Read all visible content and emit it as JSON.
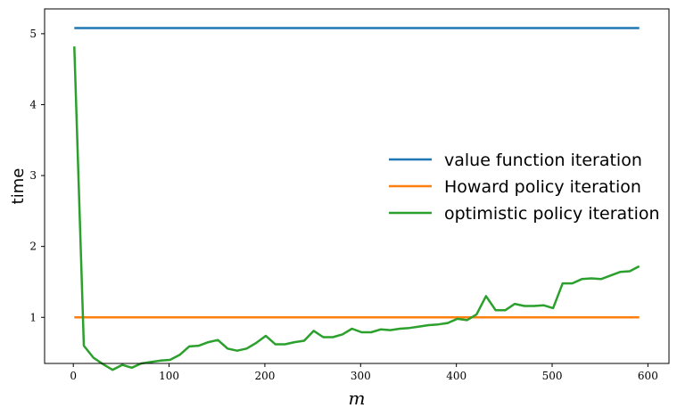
{
  "chart_data": {
    "type": "line",
    "xlabel": "m",
    "ylabel": "time",
    "xlim": [
      -30,
      622
    ],
    "ylim": [
      0.35,
      5.35
    ],
    "xticks": [
      0,
      100,
      200,
      300,
      400,
      500,
      600
    ],
    "yticks": [
      1,
      2,
      3,
      4,
      5
    ],
    "legend_position": "center-right",
    "grid": false,
    "series": [
      {
        "name": "value function iteration",
        "color": "#1f77b4",
        "x": [
          1,
          591
        ],
        "y": [
          5.08,
          5.08
        ]
      },
      {
        "name": "Howard policy iteration",
        "color": "#ff7f0e",
        "x": [
          1,
          591
        ],
        "y": [
          1.0,
          1.0
        ]
      },
      {
        "name": "optimistic policy iteration",
        "color": "#2ca02c",
        "x": [
          1,
          11,
          21,
          31,
          41,
          51,
          61,
          71,
          81,
          91,
          101,
          111,
          121,
          131,
          141,
          151,
          161,
          171,
          181,
          191,
          201,
          211,
          221,
          231,
          241,
          251,
          261,
          271,
          281,
          291,
          301,
          311,
          321,
          331,
          341,
          351,
          361,
          371,
          381,
          391,
          401,
          411,
          421,
          431,
          441,
          451,
          461,
          471,
          481,
          491,
          501,
          511,
          521,
          531,
          541,
          551,
          561,
          571,
          581,
          591
        ],
        "y": [
          4.82,
          0.6,
          0.43,
          0.34,
          0.26,
          0.33,
          0.29,
          0.35,
          0.37,
          0.39,
          0.4,
          0.47,
          0.59,
          0.6,
          0.65,
          0.68,
          0.56,
          0.53,
          0.56,
          0.64,
          0.74,
          0.62,
          0.62,
          0.65,
          0.67,
          0.81,
          0.72,
          0.72,
          0.76,
          0.84,
          0.79,
          0.79,
          0.83,
          0.82,
          0.84,
          0.85,
          0.87,
          0.89,
          0.9,
          0.92,
          0.98,
          0.96,
          1.04,
          1.3,
          1.1,
          1.1,
          1.19,
          1.16,
          1.16,
          1.17,
          1.13,
          1.48,
          1.48,
          1.54,
          1.55,
          1.54,
          1.59,
          1.64,
          1.65,
          1.72
        ]
      }
    ]
  }
}
